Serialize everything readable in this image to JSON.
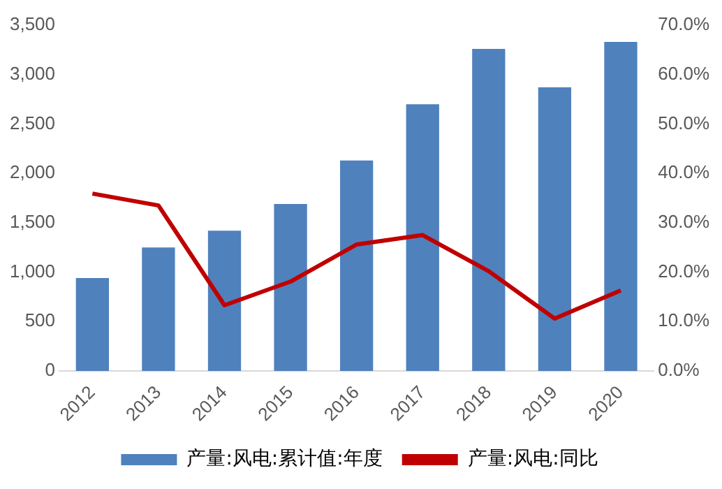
{
  "chart_data": {
    "type": "bar",
    "categories": [
      "2012",
      "2013",
      "2014",
      "2015",
      "2016",
      "2017",
      "2018",
      "2019",
      "2020"
    ],
    "series": [
      {
        "name": "产量:风电:累计值:年度",
        "color": "#4f81bd",
        "values": [
          940,
          1250,
          1420,
          1690,
          2130,
          2700,
          3260,
          2870,
          3330
        ]
      },
      {
        "name": "产量:风电:同比",
        "type": "line",
        "axis": "y2",
        "color": "#c00000",
        "values": [
          35.9,
          33.5,
          13.3,
          18.1,
          25.6,
          27.5,
          20.2,
          10.6,
          16.3
        ]
      }
    ],
    "ylim": [
      0,
      3500
    ],
    "yticks": [
      0,
      500,
      {
        "value": 1000,
        "label": "1,000"
      },
      {
        "value": 1500,
        "label": "1,500"
      },
      {
        "value": 2000,
        "label": "2,000"
      },
      {
        "value": 2500,
        "label": "2,500"
      },
      {
        "value": 3000,
        "label": "3,000"
      },
      {
        "value": 3500,
        "label": "3,500"
      }
    ],
    "y2lim": [
      0,
      70
    ],
    "y2ticks": [
      {
        "value": 0,
        "label": "0.0%"
      },
      {
        "value": 10,
        "label": "10.0%"
      },
      {
        "value": 20,
        "label": "20.0%"
      },
      {
        "value": 30,
        "label": "30.0%"
      },
      {
        "value": 40,
        "label": "40.0%"
      },
      {
        "value": 50,
        "label": "50.0%"
      },
      {
        "value": 60,
        "label": "60.0%"
      },
      {
        "value": 70,
        "label": "70.0%"
      }
    ],
    "grid": false,
    "legend": "bottom",
    "marker": "none"
  }
}
